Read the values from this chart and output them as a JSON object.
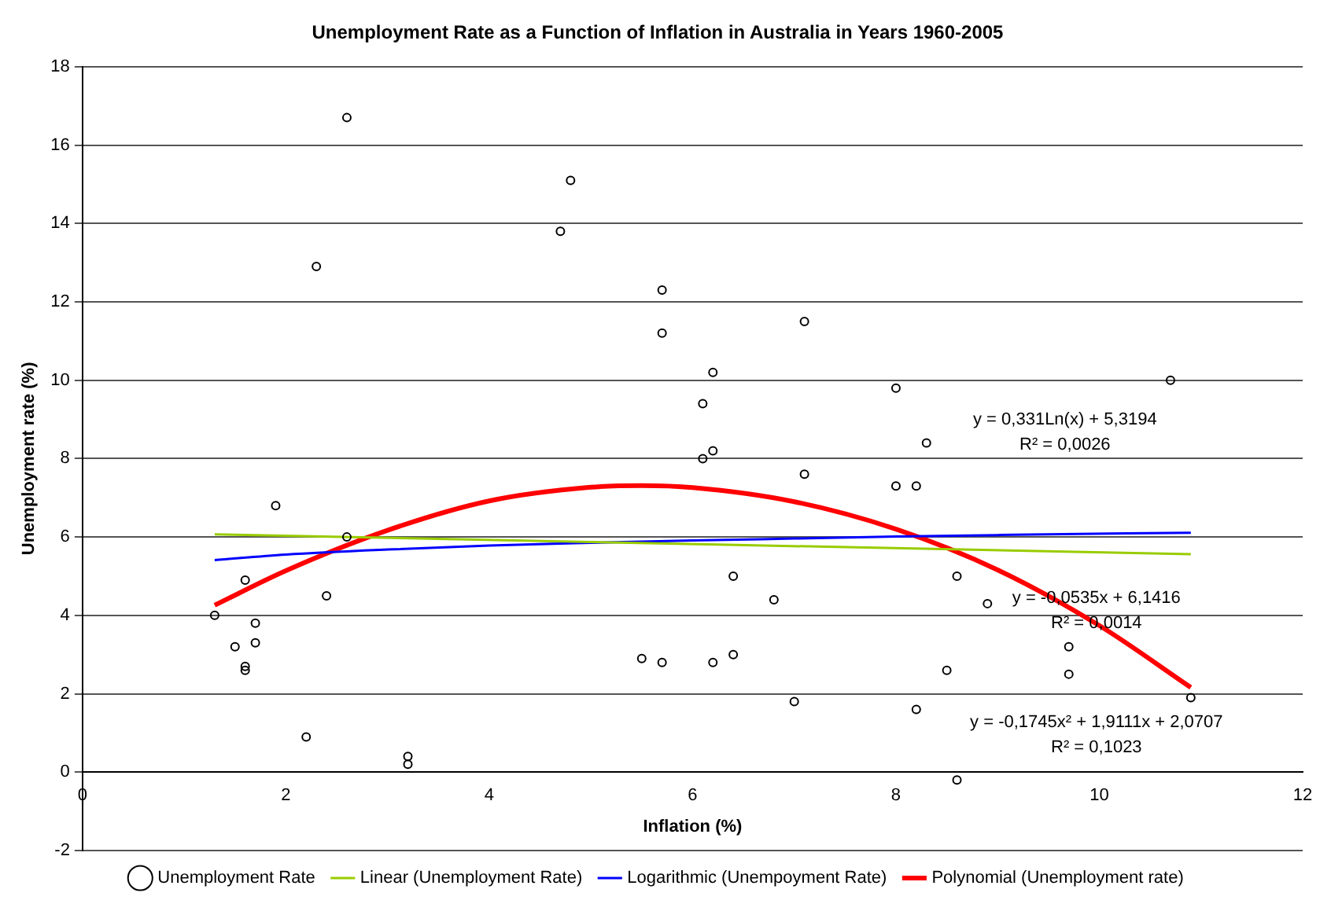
{
  "chart_data": {
    "type": "scatter",
    "title": "Unemployment Rate as a Function of Inflation in Australia in Years 1960-2005",
    "xlabel": "Inflation (%)",
    "ylabel": "Unemployment rate (%)",
    "xlim": [
      0,
      12
    ],
    "xticks": [
      0,
      2,
      4,
      6,
      8,
      10,
      12
    ],
    "ylim": [
      -2,
      18
    ],
    "yticks": [
      -2,
      0,
      2,
      4,
      6,
      8,
      10,
      12,
      14,
      16,
      18
    ],
    "grid": "y",
    "legend": "bottom",
    "series": [
      {
        "name": "Unemployment Rate",
        "marker": "circle",
        "color": "#000000",
        "x": [
          1.3,
          1.5,
          1.6,
          1.6,
          1.6,
          1.7,
          1.7,
          1.9,
          2.2,
          2.3,
          2.4,
          2.6,
          2.6,
          3.2,
          3.2,
          4.7,
          4.8,
          5.5,
          5.7,
          5.7,
          5.7,
          6.1,
          6.1,
          6.2,
          6.2,
          6.2,
          6.4,
          6.4,
          6.8,
          7.0,
          7.1,
          7.1,
          8.0,
          8.0,
          8.2,
          8.2,
          8.3,
          8.5,
          8.6,
          8.6,
          8.9,
          9.7,
          9.7,
          10.7,
          10.9
        ],
        "values": [
          4.0,
          3.2,
          4.9,
          2.7,
          2.6,
          3.8,
          3.3,
          6.8,
          0.9,
          12.9,
          4.5,
          16.7,
          6.0,
          0.4,
          0.2,
          13.8,
          15.1,
          2.9,
          12.3,
          11.2,
          2.8,
          9.4,
          8.0,
          10.2,
          8.2,
          2.8,
          5.0,
          3.0,
          4.4,
          1.8,
          11.5,
          7.6,
          9.8,
          7.3,
          7.3,
          1.6,
          8.4,
          2.6,
          5.0,
          -0.2,
          4.3,
          3.2,
          2.5,
          10.0,
          1.9
        ]
      },
      {
        "name": "Linear (Unemployment Rate)",
        "type": "line",
        "marker": "none",
        "color": "#99cc00",
        "x": [
          1.3,
          10.9
        ],
        "values": [
          6.07,
          5.56
        ]
      },
      {
        "name": "Logarithmic (Unempoyment Rate)",
        "type": "line",
        "marker": "none",
        "color": "#0000ff",
        "x": [
          1.3,
          2,
          3,
          4,
          5,
          6,
          7,
          8,
          9,
          10.9
        ],
        "values": [
          5.41,
          5.55,
          5.68,
          5.78,
          5.85,
          5.91,
          5.96,
          6.01,
          6.05,
          6.11
        ]
      },
      {
        "name": "Polynomial (Unemployment rate)",
        "type": "line",
        "marker": "none",
        "color": "#ff0000",
        "x": [
          1.3,
          2,
          3,
          4,
          5,
          5.5,
          6,
          7,
          8,
          9,
          10,
          10.9
        ],
        "values": [
          4.26,
          5.14,
          6.17,
          6.92,
          7.27,
          7.31,
          7.26,
          6.9,
          6.2,
          5.16,
          3.74,
          2.16
        ]
      }
    ],
    "annotations": [
      "y = -0,0535x + 6,1416",
      "R² = 0,0014",
      "y = 0,331Ln(x) + 5,3194",
      "R² = 0,0026",
      "y = -0,1745x² + 1,9111x + 2,0707",
      "R² = 0,1023"
    ]
  }
}
